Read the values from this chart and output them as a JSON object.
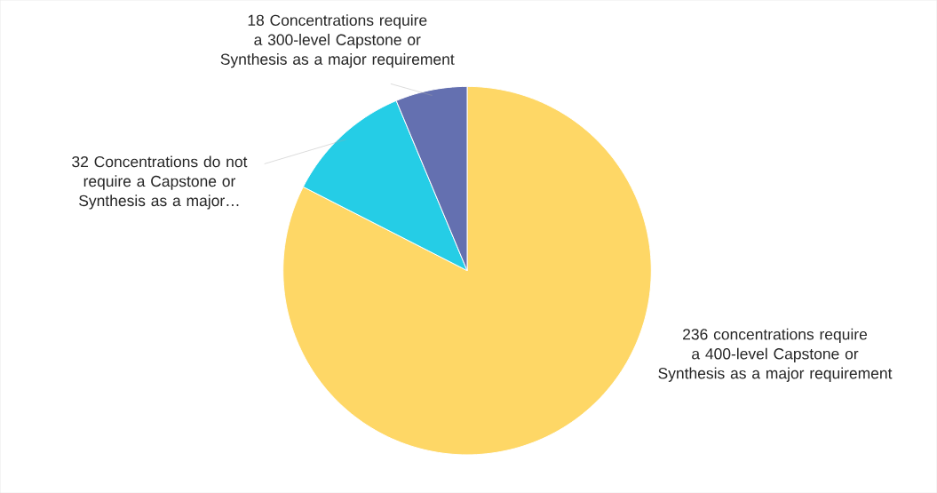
{
  "chart_data": {
    "type": "pie",
    "categories": [
      "236 concentrations require a 400-level Capstone or Synthesis as a major requirement",
      "32 Concentrations do not require a Capstone or Synthesis as a major…",
      "18 Concentrations require a 300-level Capstone or Synthesis as a major requirement"
    ],
    "values": [
      236,
      32,
      18
    ],
    "colors": [
      "#fed766",
      "#25cde6",
      "#6470b0"
    ]
  }
}
